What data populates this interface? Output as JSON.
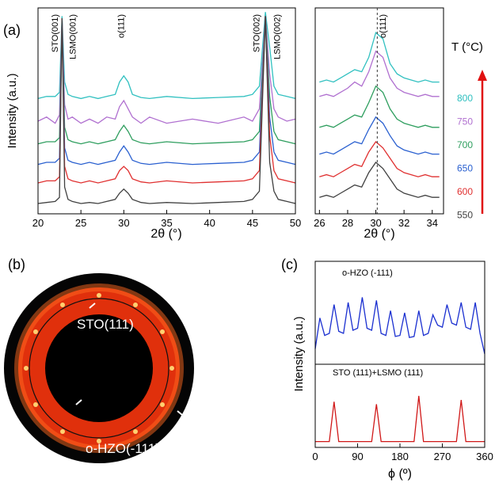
{
  "chart_data": [
    {
      "type": "line",
      "ylabel": "Intensity (a.u.)",
      "xlabel": "2θ (°)",
      "x": [
        20,
        21,
        22,
        22.5,
        22.8,
        23.1,
        23.5,
        24,
        25,
        26,
        27,
        28,
        29,
        29.5,
        30,
        30.5,
        31,
        32,
        33,
        35,
        38,
        41,
        44,
        45,
        45.8,
        46.5,
        47,
        47.5,
        48,
        49,
        50
      ],
      "xlim": [
        20,
        50
      ],
      "xticks": [
        20,
        25,
        30,
        35,
        40,
        45,
        50
      ],
      "ylim": [
        0,
        100
      ],
      "annotations": [
        {
          "text": "STO(001)",
          "x": 22.3
        },
        {
          "text": "LSMO(001)",
          "x": 24.4
        },
        {
          "text": "o(111)",
          "x": 30
        },
        {
          "text": "STO(002)",
          "x": 45.8
        },
        {
          "text": "LSMO(002)",
          "x": 48.2
        }
      ],
      "series": [
        {
          "color": "#30c0c0",
          "values": [
            56,
            57,
            57,
            59,
            96,
            64,
            58,
            57,
            56,
            57,
            56,
            57,
            58,
            64,
            67,
            64,
            58,
            56.5,
            56,
            57,
            56,
            56.5,
            57,
            58,
            62,
            98,
            81,
            62,
            58,
            57,
            56
          ]
        },
        {
          "color": "#b070d0",
          "values": [
            45,
            47,
            44,
            48,
            95,
            53,
            46,
            47,
            44,
            46,
            44,
            47,
            46,
            52,
            55,
            51,
            47,
            44,
            47,
            44,
            46,
            44,
            47,
            45,
            51,
            96,
            68,
            51,
            47,
            45,
            46
          ]
        },
        {
          "color": "#2e9e5e",
          "values": [
            34,
            35,
            35,
            37,
            95,
            42,
            36,
            35,
            34,
            35,
            34,
            35,
            36,
            40,
            43,
            40,
            36,
            34.5,
            34,
            35,
            34,
            34.5,
            35,
            36,
            40,
            96,
            57,
            40,
            36,
            35,
            34
          ]
        },
        {
          "color": "#2a60d0",
          "values": [
            24,
            25,
            25,
            27,
            95,
            32,
            26,
            25,
            24,
            25,
            24,
            25,
            26,
            30,
            33,
            30,
            26,
            24.5,
            24,
            25,
            24,
            24.5,
            25,
            26,
            30,
            96,
            47,
            30,
            26,
            25,
            24
          ]
        },
        {
          "color": "#e03030",
          "values": [
            15,
            16,
            16,
            18,
            95,
            23,
            17,
            16,
            15,
            16,
            15,
            16,
            17,
            21,
            23,
            21,
            17,
            15.5,
            15,
            16,
            15,
            15.5,
            16,
            17,
            21,
            96,
            38,
            21,
            17,
            16,
            15
          ]
        },
        {
          "color": "#404040",
          "values": [
            5,
            5.5,
            6,
            8,
            95,
            13,
            7,
            6,
            5,
            5.5,
            5,
            6,
            7,
            10,
            12,
            10,
            7,
            5.5,
            5,
            5.5,
            5,
            5.5,
            6,
            7,
            11,
            96,
            25,
            11,
            7,
            6,
            5
          ]
        }
      ]
    },
    {
      "type": "line",
      "xlabel": "2θ (°)",
      "x": [
        26,
        26.5,
        27,
        27.5,
        28,
        28.5,
        29,
        29.5,
        30,
        30.5,
        31,
        31.5,
        32,
        32.5,
        33,
        33.5,
        34,
        34.5
      ],
      "xlim": [
        25.7,
        34.8
      ],
      "xticks": [
        26,
        28,
        30,
        32,
        34
      ],
      "ylim": [
        0,
        100
      ],
      "vline": 30.1,
      "annotations": [
        {
          "text": "o(111)",
          "x": 30.7
        }
      ],
      "legend_title": "T (°C)",
      "series": [
        {
          "name": "800",
          "color": "#30c0c0",
          "values": [
            64,
            65,
            64,
            66,
            68,
            70,
            69,
            76,
            88,
            85,
            73,
            68,
            66,
            65,
            64,
            65,
            64,
            64
          ]
        },
        {
          "name": "750",
          "color": "#b070d0",
          "values": [
            57,
            58,
            57,
            59,
            61,
            64,
            62,
            69,
            79,
            76,
            66,
            61,
            59,
            58,
            57,
            58,
            57,
            57
          ]
        },
        {
          "name": "700",
          "color": "#2e9e5e",
          "values": [
            42,
            43,
            42,
            44,
            46,
            48,
            47,
            54,
            62,
            59,
            51,
            46,
            44,
            43,
            42,
            43,
            42,
            42
          ]
        },
        {
          "name": "650",
          "color": "#2a60d0",
          "values": [
            29,
            30,
            29,
            31,
            33,
            35,
            34,
            41,
            47,
            44,
            38,
            33,
            31,
            30,
            29,
            30,
            29,
            29
          ]
        },
        {
          "name": "600",
          "color": "#e03030",
          "values": [
            18,
            19,
            18,
            20,
            22,
            24,
            23,
            30,
            35,
            32,
            27,
            22,
            20,
            19,
            18,
            19,
            18,
            18
          ]
        },
        {
          "name": "550",
          "color": "#404040",
          "values": [
            8,
            9,
            8,
            10,
            12,
            14,
            13,
            20,
            25,
            22,
            17,
            12,
            10,
            9,
            8,
            9,
            8,
            8
          ]
        }
      ]
    },
    {
      "type": "line",
      "ylabel": "Intensity (a.u.)",
      "label": "o-HZO (-111)",
      "x": [
        0,
        10,
        20,
        30,
        40,
        50,
        60,
        70,
        80,
        90,
        100,
        110,
        120,
        130,
        140,
        150,
        160,
        170,
        180,
        190,
        200,
        210,
        220,
        230,
        240,
        250,
        260,
        270,
        280,
        290,
        300,
        310,
        320,
        330,
        340,
        350,
        360
      ],
      "xlim": [
        0,
        360
      ],
      "ylim": [
        0,
        100
      ],
      "series": [
        {
          "color": "#1a2fd0",
          "values": [
            15,
            45,
            28,
            30,
            58,
            32,
            30,
            60,
            33,
            35,
            65,
            35,
            33,
            62,
            30,
            28,
            52,
            27,
            28,
            50,
            26,
            27,
            52,
            28,
            30,
            48,
            38,
            36,
            58,
            40,
            38,
            60,
            36,
            34,
            60,
            30,
            10
          ]
        }
      ]
    },
    {
      "type": "line",
      "xlabel": "ϕ (º)",
      "label": "STO (111)+LSMO (111)",
      "x": [
        0,
        10,
        20,
        30,
        40,
        50,
        60,
        70,
        80,
        90,
        100,
        110,
        120,
        130,
        140,
        150,
        160,
        170,
        180,
        190,
        200,
        210,
        220,
        230,
        240,
        250,
        260,
        270,
        280,
        290,
        300,
        310,
        320,
        330,
        340,
        350,
        360
      ],
      "xlim": [
        0,
        360
      ],
      "xticks": [
        0,
        90,
        180,
        270,
        360
      ],
      "ylim": [
        0,
        100
      ],
      "series": [
        {
          "color": "#d01818",
          "values": [
            7,
            7,
            7,
            7,
            55,
            7,
            7,
            7,
            7,
            7,
            7,
            7,
            7,
            52,
            7,
            7,
            7,
            7,
            7,
            7,
            7,
            7,
            62,
            7,
            7,
            7,
            7,
            7,
            7,
            7,
            7,
            57,
            7,
            7,
            7,
            7,
            7
          ]
        }
      ]
    }
  ],
  "panel_labels": [
    "(a)",
    "(b)",
    "(c)"
  ],
  "pole_figure": {
    "annotations": [
      "STO(111)",
      "o-HZO(-111)"
    ]
  }
}
